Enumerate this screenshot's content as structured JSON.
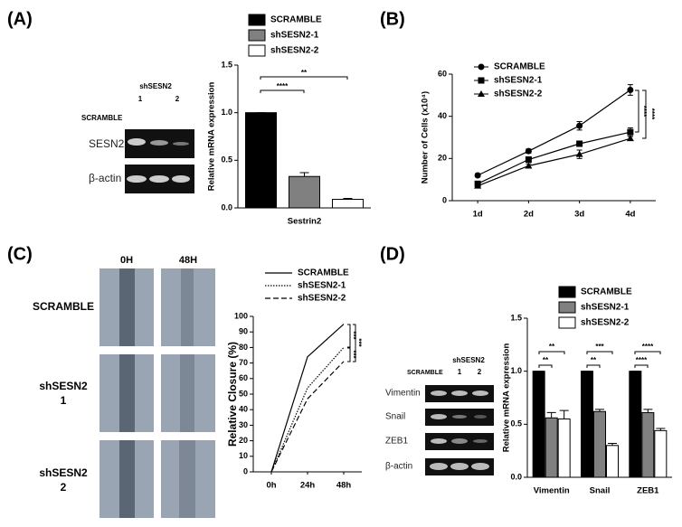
{
  "chart_data": [
    {
      "type": "bar",
      "y_label": "Relative mRNA expression",
      "categories": [
        "Sestrin2"
      ],
      "series": [
        {
          "name": "SCRAMBLE",
          "color": "#000000",
          "values": [
            1.0
          ],
          "errors": [
            0
          ]
        },
        {
          "name": "shSESN2-1",
          "color": "#808080",
          "values": [
            0.33
          ],
          "errors": [
            0.04
          ]
        },
        {
          "name": "shSESN2-2",
          "color": "#ffffff",
          "values": [
            0.09
          ],
          "errors": [
            0.01
          ]
        }
      ],
      "ylim": [
        0,
        1.5
      ],
      "yticks": [
        {
          "value": 0,
          "label": "0.0"
        },
        {
          "value": 0.5,
          "label": "0.5"
        },
        {
          "value": 1,
          "label": "1.0"
        },
        {
          "value": 1.5,
          "label": "1.5"
        }
      ],
      "annotations": [
        "****",
        "**"
      ]
    },
    {
      "type": "line",
      "y_label": "Number of Cells (x10⁴)",
      "categories": [
        "1d",
        "2d",
        "3d",
        "4d"
      ],
      "series": [
        {
          "name": "SCRAMBLE",
          "color": "#000000",
          "marker": "circle",
          "values": [
            12,
            23.5,
            35.5,
            52.5
          ],
          "errors": [
            0.8,
            1,
            2,
            2.5
          ]
        },
        {
          "name": "shSESN2-1",
          "color": "#000000",
          "marker": "square",
          "values": [
            8,
            19.5,
            27,
            32.5
          ],
          "errors": [
            0.8,
            1,
            1,
            2
          ]
        },
        {
          "name": "shSESN2-2",
          "color": "#000000",
          "marker": "triangle",
          "values": [
            7,
            16.5,
            22,
            29.5
          ],
          "errors": [
            0.8,
            1,
            2,
            1
          ]
        }
      ],
      "ylim": [
        0,
        60
      ],
      "yticks": [
        0,
        20,
        40,
        60
      ],
      "annotations": [
        "****",
        "****"
      ]
    },
    {
      "type": "line",
      "y_label": "Relative Closure (%)",
      "categories": [
        "0h",
        "24h",
        "48h"
      ],
      "series": [
        {
          "name": "SCRAMBLE",
          "color": "#000000",
          "style": "solid",
          "values": [
            0,
            74,
            95
          ]
        },
        {
          "name": "shSESN2-1",
          "color": "#000000",
          "style": "dotted",
          "values": [
            0,
            54,
            80
          ]
        },
        {
          "name": "shSESN2-2",
          "color": "#000000",
          "style": "dashed",
          "values": [
            0,
            47,
            71
          ]
        }
      ],
      "ylim": [
        0,
        100
      ],
      "yticks": [
        0,
        10,
        20,
        30,
        40,
        50,
        60,
        70,
        80,
        90,
        100
      ],
      "annotations": [
        "***",
        "***",
        "***"
      ]
    },
    {
      "type": "bar",
      "y_label": "Relative mRNA expression",
      "categories": [
        "Vimentin",
        "Snail",
        "ZEB1"
      ],
      "series": [
        {
          "name": "SCRAMBLE",
          "color": "#000000",
          "values": [
            1,
            1,
            1
          ],
          "errors": [
            0,
            0,
            0
          ]
        },
        {
          "name": "shSESN2-1",
          "color": "#808080",
          "values": [
            0.56,
            0.62,
            0.61
          ],
          "errors": [
            0.05,
            0.02,
            0.03
          ]
        },
        {
          "name": "shSESN2-2",
          "color": "#ffffff",
          "values": [
            0.55,
            0.3,
            0.44
          ],
          "errors": [
            0.08,
            0.02,
            0.02
          ]
        }
      ],
      "ylim": [
        0,
        1.5
      ],
      "yticks": [
        {
          "value": 0,
          "label": "0.0"
        },
        {
          "value": 0.5,
          "label": "0.5"
        },
        {
          "value": 1,
          "label": "1.0"
        },
        {
          "value": 1.5,
          "label": "1.5"
        }
      ],
      "annotations": [
        "**",
        "**",
        "***",
        "**",
        "****",
        "****"
      ]
    }
  ],
  "panel_labels": [
    "(A)",
    "(B)",
    "(C)",
    "(D)"
  ],
  "blot_a": {
    "header": "SCRAMBLE",
    "group": "shSESN2",
    "lanes": [
      "1",
      "2"
    ],
    "rows": [
      "SESN2",
      "β-actin"
    ]
  },
  "wound": {
    "columns": [
      "0H",
      "48H"
    ],
    "rows": [
      [
        "SCRAMBLE"
      ],
      [
        "shSESN2",
        "1"
      ],
      [
        "shSESN2",
        "2"
      ]
    ]
  },
  "blot_d": {
    "header": "SCRAMBLE",
    "group": "shSESN2",
    "lanes": [
      "1",
      "2"
    ],
    "rows": [
      "Vimentin",
      "Snail",
      "ZEB1",
      "β-actin"
    ]
  }
}
